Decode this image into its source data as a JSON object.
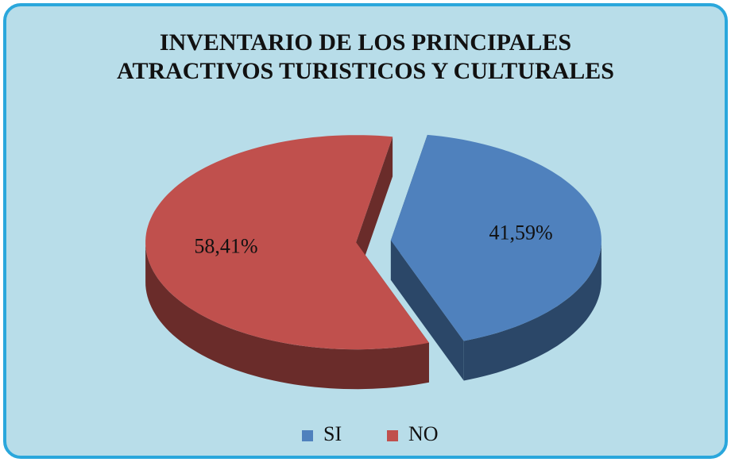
{
  "chart_data": {
    "type": "pie3d",
    "title": "INVENTARIO DE LOS PRINCIPALES ATRACTIVOS TURISTICOS Y CULTURALES",
    "categories": [
      "SI",
      "NO"
    ],
    "values": [
      41.59,
      58.41
    ],
    "value_labels": [
      "41,59%",
      "58,41%"
    ],
    "colors": [
      "#4f81bd",
      "#c0504d"
    ],
    "legend": "bottom"
  }
}
